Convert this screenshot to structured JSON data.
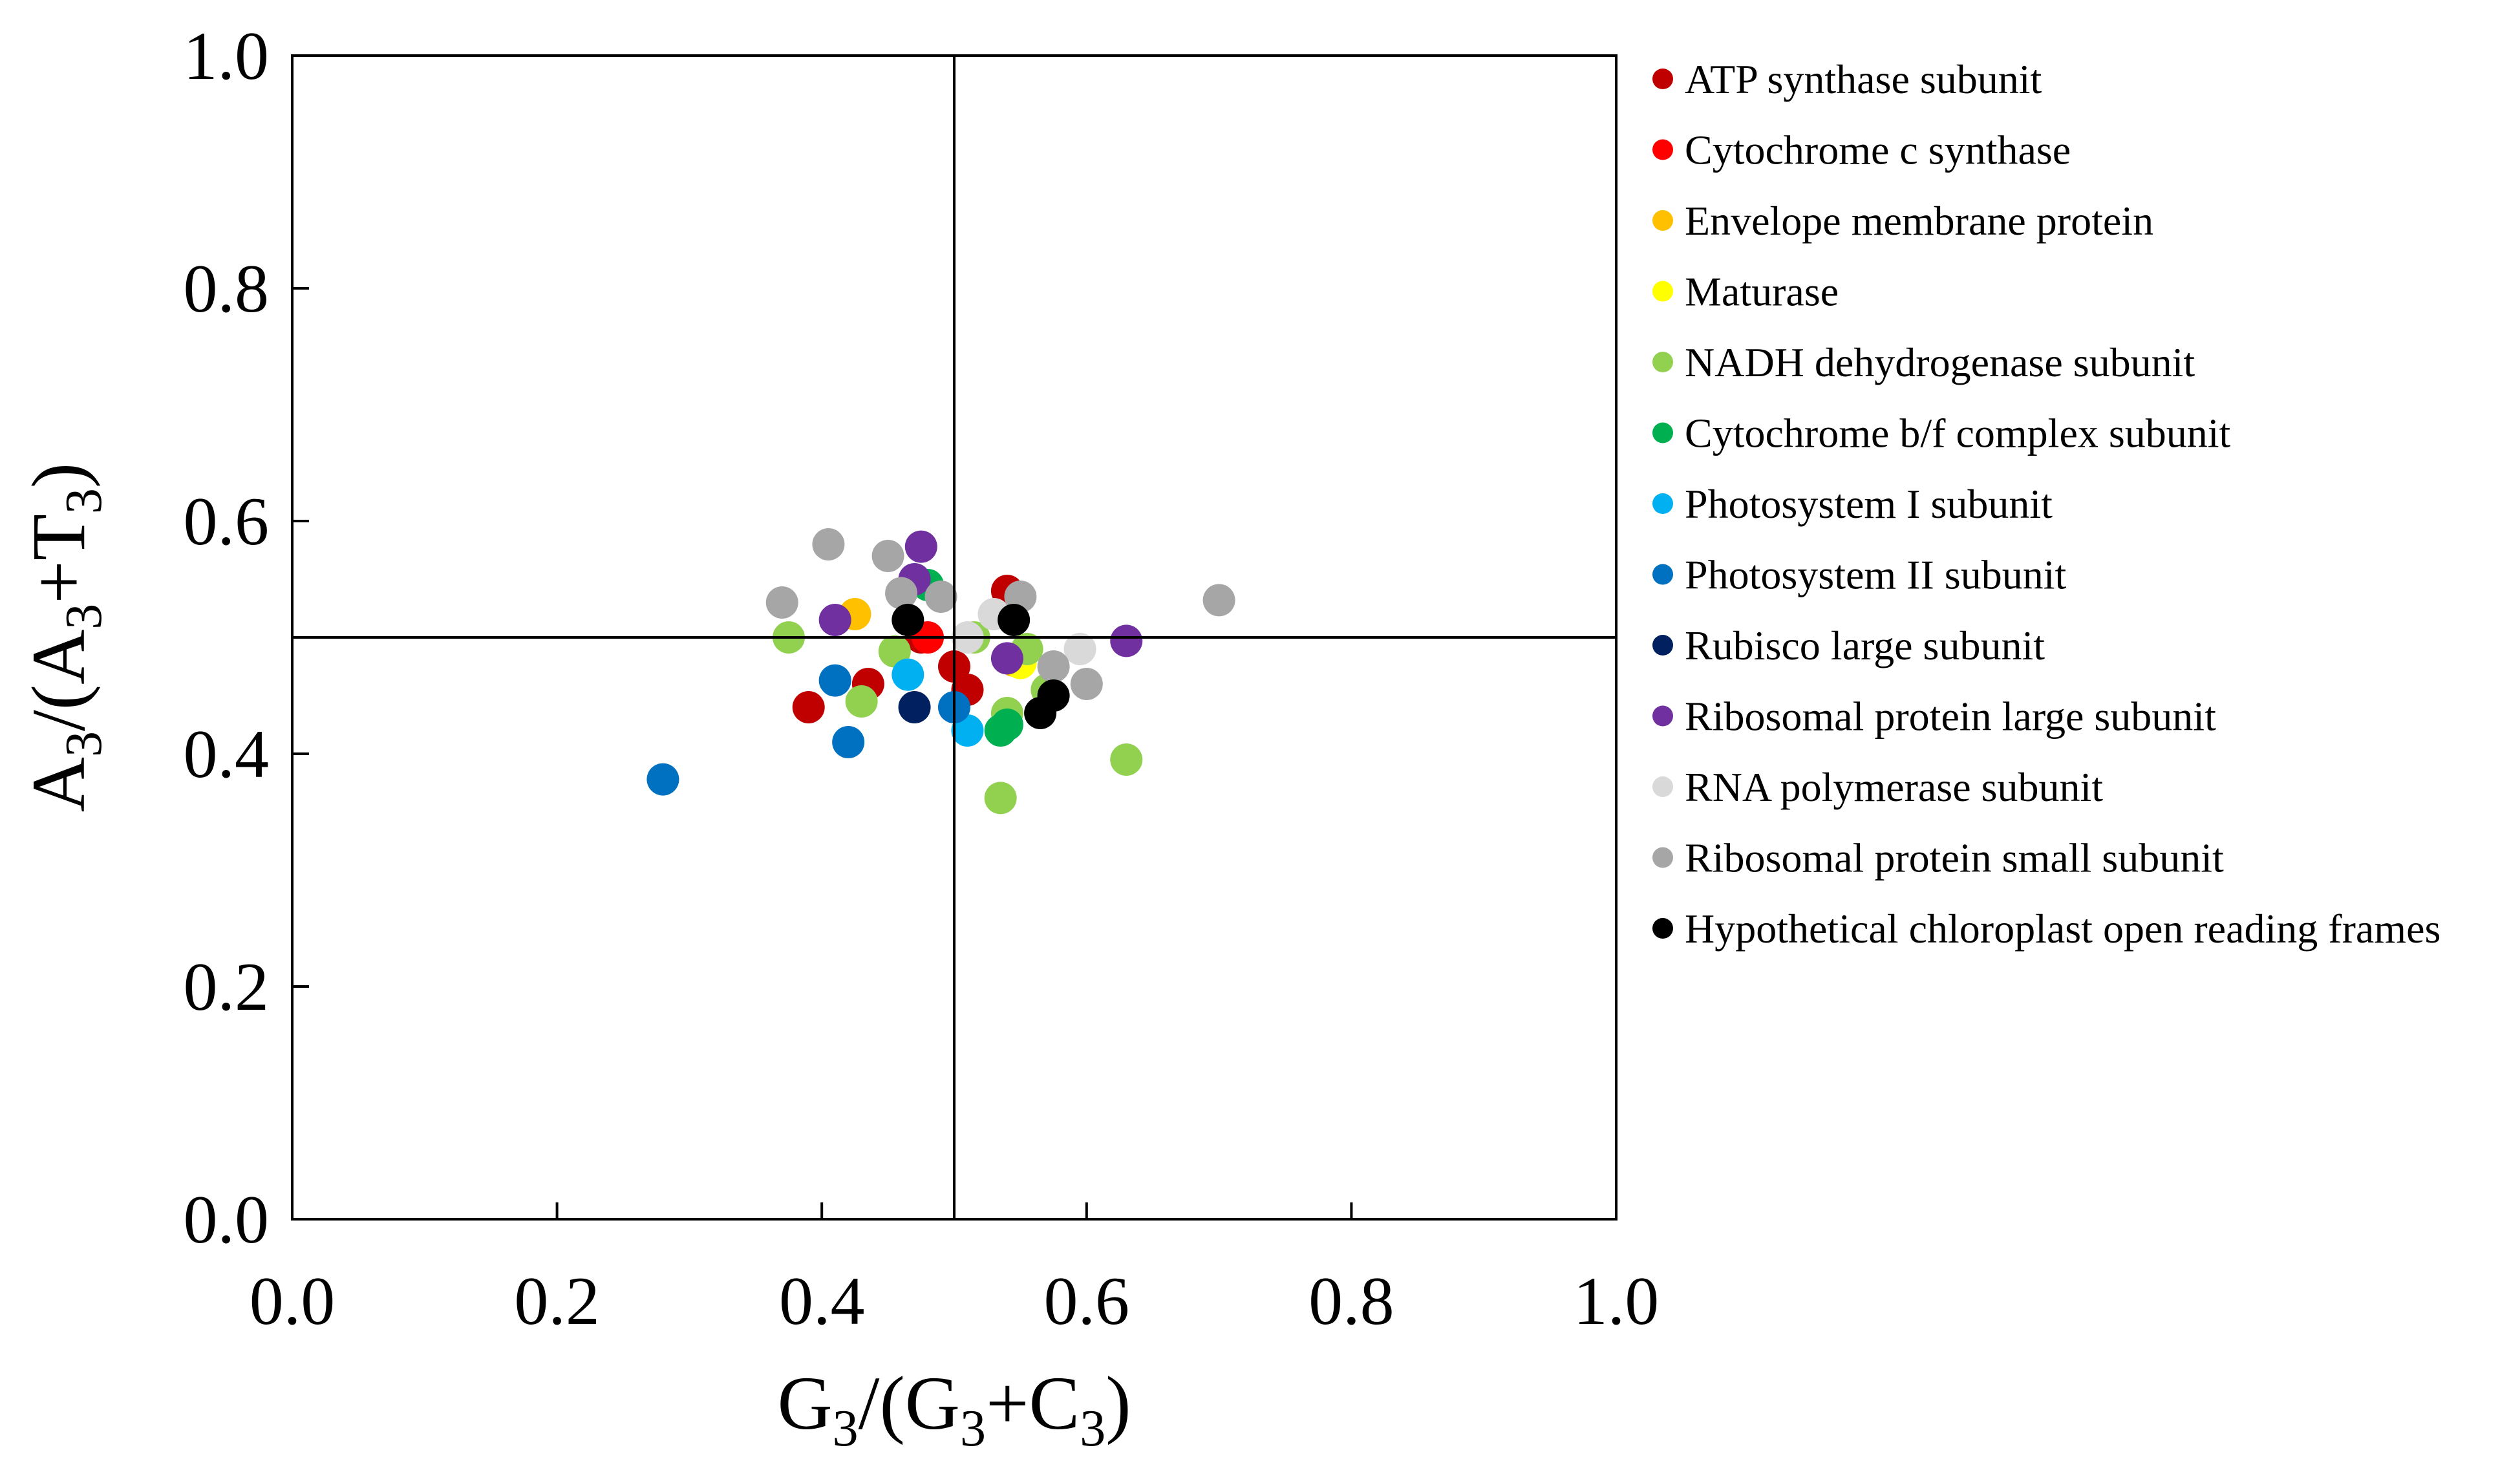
{
  "chart_data": {
    "type": "scatter",
    "title": "",
    "xlabel": {
      "parts": [
        {
          "t": "G",
          "sub": false
        },
        {
          "t": "3",
          "sub": true
        },
        {
          "t": "/(G",
          "sub": false
        },
        {
          "t": "3",
          "sub": true
        },
        {
          "t": "+C",
          "sub": false
        },
        {
          "t": "3",
          "sub": true
        },
        {
          "t": ")",
          "sub": false
        }
      ]
    },
    "ylabel": {
      "parts": [
        {
          "t": "A",
          "sub": false
        },
        {
          "t": "3",
          "sub": true
        },
        {
          "t": "/(A",
          "sub": false
        },
        {
          "t": "3",
          "sub": true
        },
        {
          "t": "+T",
          "sub": false
        },
        {
          "t": "3",
          "sub": true
        },
        {
          "t": ")",
          "sub": false
        }
      ]
    },
    "xlim": [
      0,
      1
    ],
    "ylim": [
      0,
      1
    ],
    "xticks": [
      "0.0",
      "0.2",
      "0.4",
      "0.6",
      "0.8",
      "1.0"
    ],
    "yticks": [
      "0.0",
      "0.2",
      "0.4",
      "0.6",
      "0.8",
      "1.0"
    ],
    "reference_lines": {
      "x": 0.5,
      "y": 0.5
    },
    "grid": false,
    "legend_position": "right",
    "series": [
      {
        "name": "ATP synthase subunit",
        "color": "#C00000",
        "points": [
          [
            0.39,
            0.44
          ],
          [
            0.435,
            0.46
          ],
          [
            0.475,
            0.5
          ],
          [
            0.5,
            0.475
          ],
          [
            0.51,
            0.455
          ],
          [
            0.54,
            0.54
          ]
        ]
      },
      {
        "name": "Cytochrome c synthase",
        "color": "#FF0000",
        "points": [
          [
            0.48,
            0.5
          ]
        ]
      },
      {
        "name": "Envelope membrane protein",
        "color": "#FFC000",
        "points": [
          [
            0.425,
            0.52
          ],
          [
            0.545,
            0.48
          ]
        ]
      },
      {
        "name": "Maturase",
        "color": "#FFFF00",
        "points": [
          [
            0.55,
            0.478
          ]
        ]
      },
      {
        "name": "NADH dehydrogenase subunit",
        "color": "#92D050",
        "points": [
          [
            0.375,
            0.5
          ],
          [
            0.43,
            0.445
          ],
          [
            0.455,
            0.488
          ],
          [
            0.515,
            0.5
          ],
          [
            0.535,
            0.362
          ],
          [
            0.54,
            0.435
          ],
          [
            0.555,
            0.49
          ],
          [
            0.57,
            0.455
          ],
          [
            0.63,
            0.395
          ]
        ]
      },
      {
        "name": "Cytochrome b/f complex subunit",
        "color": "#00B050",
        "points": [
          [
            0.48,
            0.545
          ],
          [
            0.535,
            0.42
          ],
          [
            0.54,
            0.425
          ]
        ]
      },
      {
        "name": "Photosystem I subunit",
        "color": "#00B0F0",
        "points": [
          [
            0.465,
            0.468
          ],
          [
            0.51,
            0.42
          ]
        ]
      },
      {
        "name": "Photosystem II subunit",
        "color": "#0070C0",
        "points": [
          [
            0.28,
            0.378
          ],
          [
            0.41,
            0.463
          ],
          [
            0.42,
            0.41
          ],
          [
            0.5,
            0.44
          ]
        ]
      },
      {
        "name": "Rubisco large subunit",
        "color": "#002060",
        "points": [
          [
            0.47,
            0.44
          ]
        ]
      },
      {
        "name": "Ribosomal protein large subunit",
        "color": "#7030A0",
        "points": [
          [
            0.41,
            0.515
          ],
          [
            0.47,
            0.55
          ],
          [
            0.475,
            0.578
          ],
          [
            0.54,
            0.482
          ],
          [
            0.63,
            0.497
          ]
        ]
      },
      {
        "name": "RNA polymerase subunit",
        "color": "#D9D9D9",
        "points": [
          [
            0.51,
            0.5
          ],
          [
            0.53,
            0.52
          ],
          [
            0.595,
            0.49
          ]
        ]
      },
      {
        "name": "Ribosomal protein small subunit",
        "color": "#A6A6A6",
        "points": [
          [
            0.37,
            0.53
          ],
          [
            0.405,
            0.58
          ],
          [
            0.45,
            0.57
          ],
          [
            0.46,
            0.538
          ],
          [
            0.49,
            0.535
          ],
          [
            0.55,
            0.535
          ],
          [
            0.575,
            0.475
          ],
          [
            0.6,
            0.46
          ],
          [
            0.7,
            0.532
          ]
        ]
      },
      {
        "name": "Hypothetical chloroplast open reading frames",
        "color": "#000000",
        "points": [
          [
            0.465,
            0.515
          ],
          [
            0.545,
            0.515
          ],
          [
            0.565,
            0.435
          ],
          [
            0.575,
            0.45
          ]
        ]
      }
    ]
  }
}
